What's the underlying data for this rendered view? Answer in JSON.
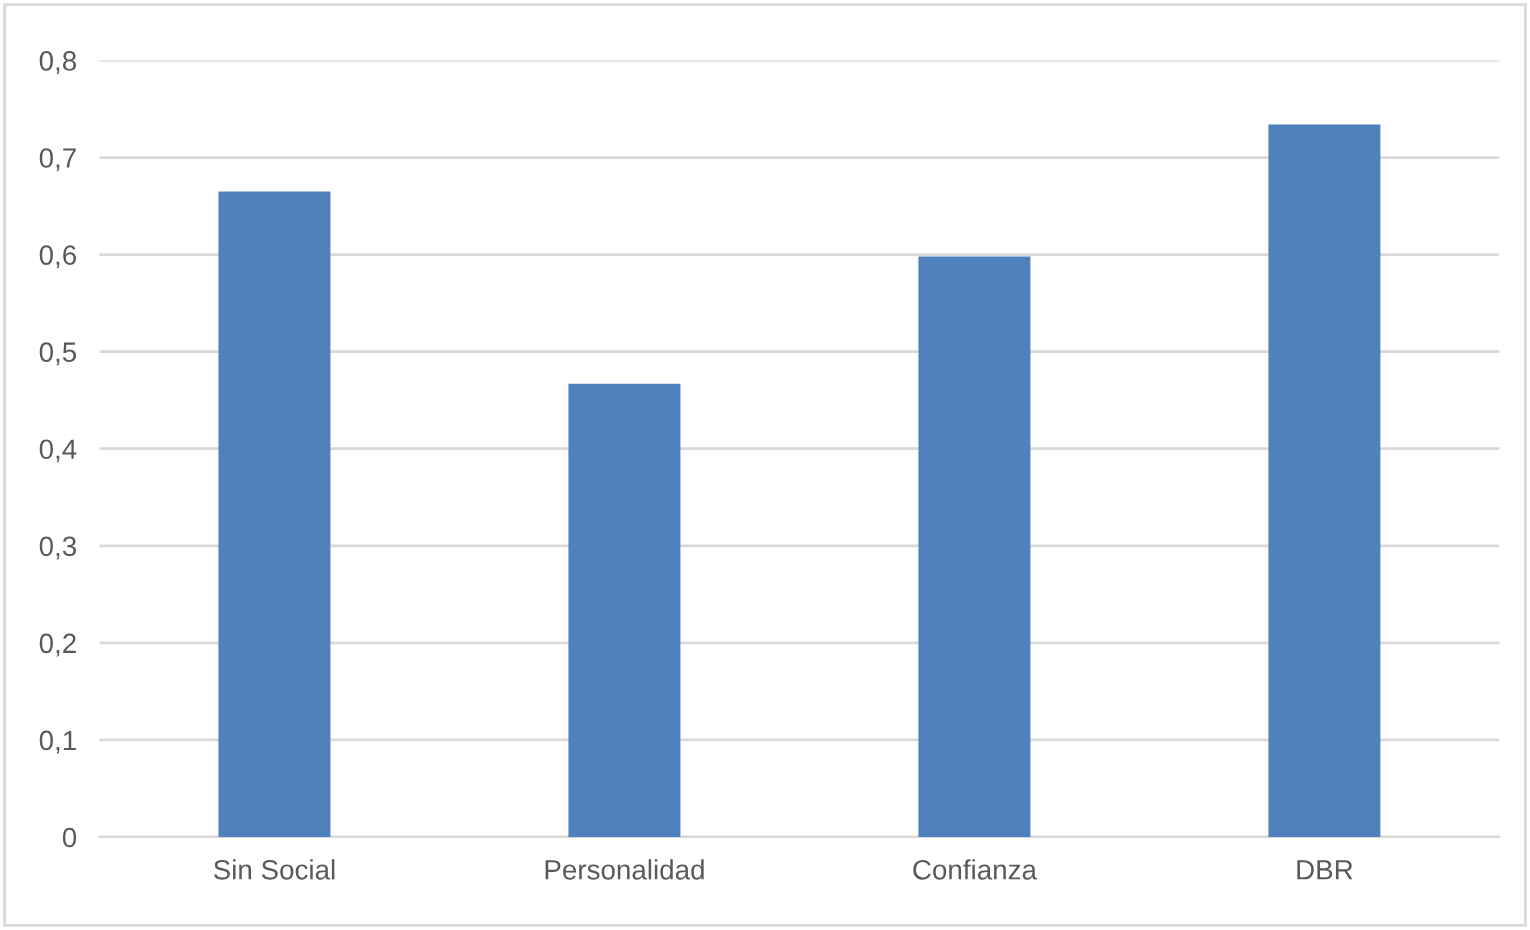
{
  "chart_data": {
    "type": "bar",
    "categories": [
      "Sin Social",
      "Personalidad",
      "Confianza",
      "DBR"
    ],
    "values": [
      0.665,
      0.467,
      0.598,
      0.734
    ],
    "color": "#4f81bd",
    "ylim": [
      0,
      0.8
    ],
    "yticks": [
      0,
      {
        "value": 0.1,
        "label": "0,1"
      },
      {
        "value": 0.2,
        "label": "0,2"
      },
      {
        "value": 0.3,
        "label": "0,3"
      },
      {
        "value": 0.4,
        "label": "0,4"
      },
      {
        "value": 0.5,
        "label": "0,5"
      },
      {
        "value": 0.6,
        "label": "0,6"
      },
      {
        "value": 0.7,
        "label": "0,7"
      },
      {
        "value": 0.8,
        "label": "0,8"
      }
    ],
    "grid": "y"
  }
}
